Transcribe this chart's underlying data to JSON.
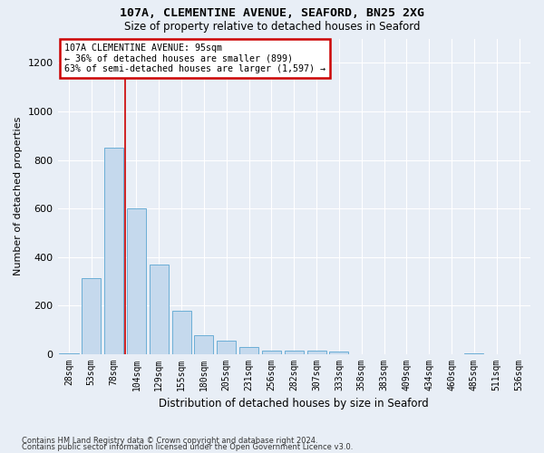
{
  "title1": "107A, CLEMENTINE AVENUE, SEAFORD, BN25 2XG",
  "title2": "Size of property relative to detached houses in Seaford",
  "xlabel": "Distribution of detached houses by size in Seaford",
  "ylabel": "Number of detached properties",
  "categories": [
    "28sqm",
    "53sqm",
    "78sqm",
    "104sqm",
    "129sqm",
    "155sqm",
    "180sqm",
    "205sqm",
    "231sqm",
    "256sqm",
    "282sqm",
    "307sqm",
    "333sqm",
    "358sqm",
    "383sqm",
    "409sqm",
    "434sqm",
    "460sqm",
    "485sqm",
    "511sqm",
    "536sqm"
  ],
  "values": [
    5,
    315,
    850,
    600,
    370,
    180,
    80,
    55,
    30,
    15,
    15,
    15,
    10,
    0,
    0,
    0,
    0,
    0,
    5,
    0,
    0
  ],
  "bar_color": "#c5d9ed",
  "bar_edge_color": "#6baed6",
  "background_color": "#e8eef6",
  "grid_color": "#ffffff",
  "annotation_text_line1": "107A CLEMENTINE AVENUE: 95sqm",
  "annotation_text_line2": "← 36% of detached houses are smaller (899)",
  "annotation_text_line3": "63% of semi-detached houses are larger (1,597) →",
  "annotation_box_color": "#ffffff",
  "annotation_box_edge": "#cc0000",
  "vline_color": "#cc0000",
  "vline_x": 2.5,
  "ylim": [
    0,
    1300
  ],
  "yticks": [
    0,
    200,
    400,
    600,
    800,
    1000,
    1200
  ],
  "footnote1": "Contains HM Land Registry data © Crown copyright and database right 2024.",
  "footnote2": "Contains public sector information licensed under the Open Government Licence v3.0."
}
